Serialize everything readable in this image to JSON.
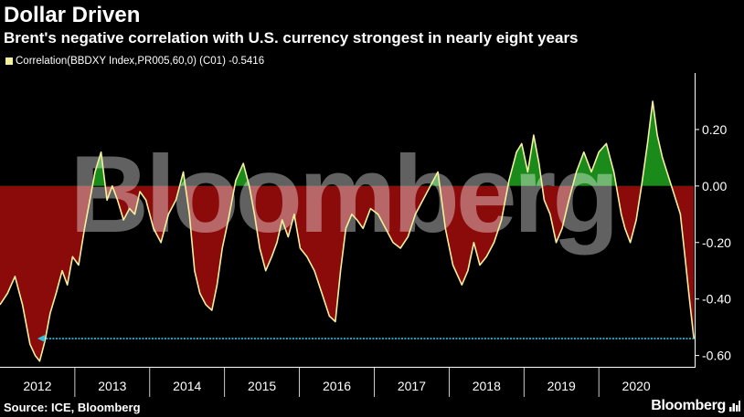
{
  "header": {
    "title": "Dollar Driven",
    "subtitle": "Brent's negative correlation with U.S. currency strongest in nearly eight years"
  },
  "legend": {
    "label": "Correlation(BBDXY Index,PR005,60,0) (C01) -0.5416"
  },
  "footer": {
    "source": "Source: ICE, Bloomberg",
    "brand": "Bloomberg",
    "brand_icon": "bar-chart-icon"
  },
  "watermark": {
    "text": "Bloomberg"
  },
  "colors": {
    "line": "#f5f0a0",
    "positive_fill": "#1a8a1a",
    "negative_fill": "#8b0a0a",
    "arrow": "#35c0e0",
    "axis": "#ffffff",
    "watermark": "#ffffff"
  },
  "chart_data": {
    "type": "line",
    "ylim": [
      -0.64,
      0.4
    ],
    "xlim": [
      2011.25,
      2020.53
    ],
    "yticks": [
      0.2,
      0.0,
      -0.2,
      -0.4,
      -0.6
    ],
    "ytick_labels": [
      "0.20",
      "0.00",
      "-0.20",
      "-0.40",
      "-0.60"
    ],
    "year_labels": [
      "2012",
      "2013",
      "2014",
      "2015",
      "2016",
      "2017",
      "2018",
      "2019",
      "2020"
    ],
    "year_label_pos": [
      2011.75,
      2012.75,
      2013.75,
      2014.75,
      2015.75,
      2016.75,
      2017.75,
      2018.75,
      2019.75
    ],
    "year_boundaries": [
      2012.25,
      2013.25,
      2014.25,
      2015.25,
      2016.25,
      2017.25,
      2018.25,
      2019.25
    ],
    "annotation_arrow": {
      "value": -0.54,
      "x_start": 2011.75,
      "x_end": 2020.52
    },
    "series": [
      {
        "name": "Correlation(BBDXY Index,PR005,60,0) (C01)",
        "last_value": -0.5416,
        "x": [
          2011.25,
          2011.35,
          2011.45,
          2011.55,
          2011.65,
          2011.72,
          2011.78,
          2011.85,
          2011.92,
          2012.0,
          2012.08,
          2012.15,
          2012.22,
          2012.3,
          2012.38,
          2012.45,
          2012.52,
          2012.6,
          2012.68,
          2012.75,
          2012.82,
          2012.9,
          2012.98,
          2013.05,
          2013.12,
          2013.2,
          2013.3,
          2013.4,
          2013.5,
          2013.6,
          2013.7,
          2013.78,
          2013.85,
          2013.92,
          2014.0,
          2014.08,
          2014.15,
          2014.22,
          2014.3,
          2014.4,
          2014.5,
          2014.58,
          2014.65,
          2014.72,
          2014.8,
          2014.88,
          2014.95,
          2015.02,
          2015.1,
          2015.18,
          2015.26,
          2015.35,
          2015.45,
          2015.55,
          2015.65,
          2015.73,
          2015.8,
          2015.87,
          2015.95,
          2016.02,
          2016.1,
          2016.2,
          2016.3,
          2016.4,
          2016.5,
          2016.6,
          2016.7,
          2016.8,
          2016.9,
          2017.0,
          2017.1,
          2017.2,
          2017.3,
          2017.42,
          2017.5,
          2017.58,
          2017.66,
          2017.75,
          2017.85,
          2017.95,
          2018.05,
          2018.15,
          2018.22,
          2018.3,
          2018.38,
          2018.45,
          2018.52,
          2018.6,
          2018.68,
          2018.76,
          2018.85,
          2018.95,
          2019.05,
          2019.15,
          2019.25,
          2019.35,
          2019.45,
          2019.55,
          2019.6,
          2019.67,
          2019.75,
          2019.82,
          2019.9,
          2019.97,
          2020.03,
          2020.1,
          2020.16,
          2020.22,
          2020.28,
          2020.34,
          2020.4,
          2020.46,
          2020.52
        ],
        "y": [
          -0.42,
          -0.38,
          -0.32,
          -0.42,
          -0.56,
          -0.6,
          -0.62,
          -0.55,
          -0.45,
          -0.38,
          -0.3,
          -0.35,
          -0.25,
          -0.28,
          -0.15,
          -0.05,
          0.05,
          0.12,
          -0.05,
          0.0,
          -0.05,
          -0.12,
          -0.08,
          -0.1,
          -0.02,
          -0.05,
          -0.15,
          -0.2,
          -0.1,
          -0.05,
          0.05,
          -0.1,
          -0.3,
          -0.38,
          -0.42,
          -0.44,
          -0.35,
          -0.22,
          -0.12,
          0.02,
          0.08,
          0.0,
          -0.1,
          -0.22,
          -0.3,
          -0.25,
          -0.2,
          -0.12,
          -0.18,
          -0.1,
          -0.22,
          -0.25,
          -0.3,
          -0.38,
          -0.46,
          -0.48,
          -0.3,
          -0.15,
          -0.1,
          -0.12,
          -0.15,
          -0.08,
          -0.1,
          -0.15,
          -0.2,
          -0.22,
          -0.18,
          -0.1,
          -0.05,
          0.0,
          0.05,
          -0.15,
          -0.28,
          -0.35,
          -0.3,
          -0.2,
          -0.28,
          -0.25,
          -0.2,
          -0.12,
          0.02,
          0.12,
          0.15,
          0.05,
          0.18,
          0.08,
          -0.05,
          -0.1,
          -0.2,
          -0.15,
          -0.05,
          0.05,
          0.12,
          0.05,
          0.12,
          0.15,
          0.05,
          -0.1,
          -0.15,
          -0.2,
          -0.12,
          0.0,
          0.15,
          0.3,
          0.18,
          0.1,
          0.05,
          0.0,
          -0.05,
          -0.1,
          -0.25,
          -0.4,
          -0.5416
        ]
      }
    ]
  }
}
